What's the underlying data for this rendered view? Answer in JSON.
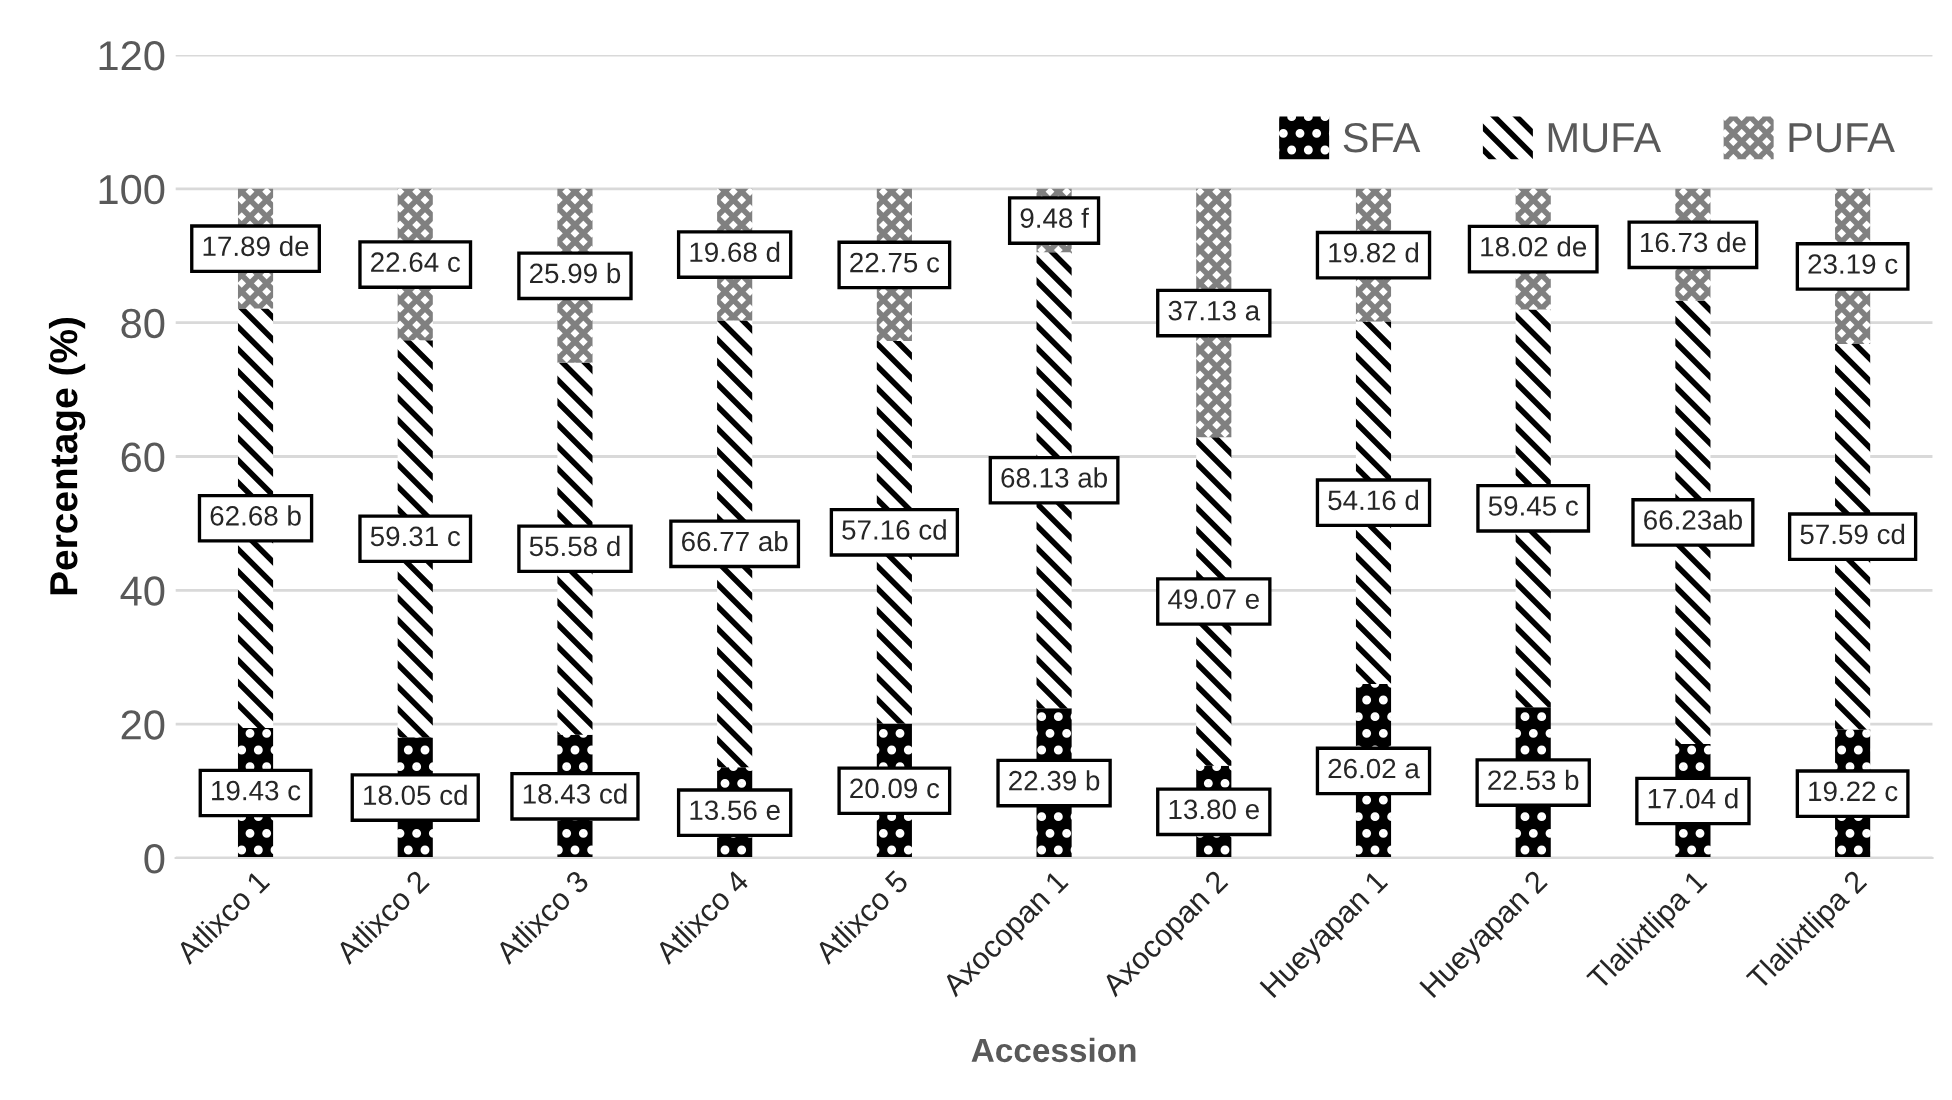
{
  "chart_data": {
    "type": "bar",
    "stacked": true,
    "xlabel": "Accession",
    "ylabel": "Percentage (%)",
    "categories": [
      "Atlixco 1",
      "Atlixco 2",
      "Atlixco 3",
      "Atlixco 4",
      "Atlixco 5",
      "Axocopan 1",
      "Axocopan 2",
      "Hueyapan 1",
      "Hueyapan 2",
      "Tlalixtlipa 1",
      "Tlalixtlipa 2"
    ],
    "series": [
      {
        "name": "SFA",
        "color": "#000000",
        "values": [
          19.43,
          18.05,
          18.43,
          13.56,
          20.09,
          22.39,
          13.8,
          26.02,
          22.53,
          17.04,
          19.22
        ],
        "value_labels": [
          "19.43 c",
          "18.05 cd",
          "18.43 cd",
          "13.56 e",
          "20.09 c",
          "22.39 b",
          "13.80 e",
          "26.02 a",
          "22.53 b",
          "17.04 d",
          "19.22 c"
        ]
      },
      {
        "name": "MUFA",
        "color": "#000000",
        "values": [
          62.68,
          59.31,
          55.58,
          66.77,
          57.16,
          68.13,
          49.07,
          54.16,
          59.45,
          66.23,
          57.59
        ],
        "value_labels": [
          "62.68 b",
          "59.31 c",
          "55.58 d",
          "66.77 ab",
          "57.16 cd",
          "68.13 ab",
          "49.07 e",
          "54.16 d",
          "59.45 c",
          "66.23ab",
          "57.59 cd"
        ]
      },
      {
        "name": "PUFA",
        "color": "#808080",
        "values": [
          17.89,
          22.64,
          25.99,
          19.68,
          22.75,
          9.48,
          37.13,
          19.82,
          18.02,
          16.73,
          23.19
        ],
        "value_labels": [
          "17.89 de",
          "22.64 c",
          "25.99 b",
          "19.68 d",
          "22.75 c",
          "9.48 f",
          "37.13 a",
          "19.82 d",
          "18.02 de",
          "16.73 de",
          "23.19 c"
        ]
      }
    ],
    "ylim": [
      0,
      120
    ],
    "yticks": [
      0,
      20,
      40,
      60,
      80,
      100,
      120
    ],
    "grid": "y",
    "legend": "top right"
  }
}
